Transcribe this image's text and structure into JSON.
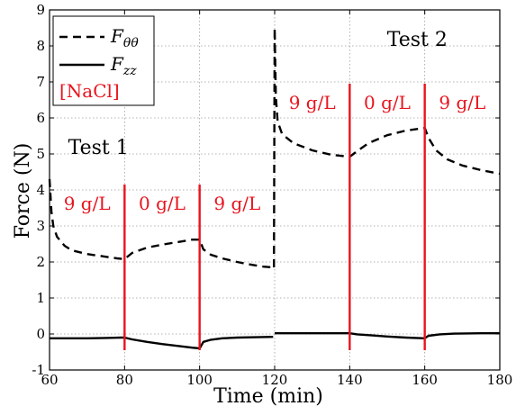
{
  "chart_data": {
    "type": "line",
    "xlabel": "Time (min)",
    "ylabel": "Force (N)",
    "xlim": [
      60,
      180
    ],
    "ylim": [
      -1,
      9
    ],
    "xticks": [
      60,
      80,
      100,
      120,
      140,
      160,
      180
    ],
    "yticks": [
      -1,
      0,
      1,
      2,
      3,
      4,
      5,
      6,
      7,
      8,
      9
    ],
    "grid": true,
    "legend": {
      "placement": "top-left",
      "entries": [
        {
          "label": "F",
          "sub": "θθ",
          "style": "dashed"
        },
        {
          "label": "F",
          "sub": "zz",
          "style": "solid"
        }
      ],
      "extra": "[NaCl]"
    },
    "series": [
      {
        "key": "ftt",
        "style": "dashed",
        "color": "#000000",
        "segments": [
          [
            [
              60,
              4.3
            ],
            [
              60.5,
              3.4
            ],
            [
              61,
              3.0
            ],
            [
              62,
              2.7
            ],
            [
              64,
              2.45
            ],
            [
              66,
              2.32
            ],
            [
              70,
              2.22
            ],
            [
              74,
              2.16
            ],
            [
              78,
              2.1
            ],
            [
              80,
              2.08
            ],
            [
              82,
              2.25
            ],
            [
              86,
              2.4
            ],
            [
              90,
              2.48
            ],
            [
              94,
              2.55
            ],
            [
              98,
              2.62
            ],
            [
              100,
              2.62
            ],
            [
              101,
              2.35
            ],
            [
              103,
              2.2
            ],
            [
              106,
              2.1
            ],
            [
              110,
              2.0
            ],
            [
              114,
              1.92
            ],
            [
              117,
              1.87
            ],
            [
              119.6,
              1.85
            ]
          ],
          [
            [
              119.8,
              1.85
            ],
            [
              120,
              8.5
            ],
            [
              120.3,
              6.6
            ],
            [
              120.8,
              5.9
            ],
            [
              122,
              5.55
            ],
            [
              125,
              5.3
            ],
            [
              130,
              5.1
            ],
            [
              135,
              4.98
            ],
            [
              140,
              4.92
            ],
            [
              142,
              5.08
            ],
            [
              145,
              5.3
            ],
            [
              150,
              5.52
            ],
            [
              155,
              5.65
            ],
            [
              160,
              5.72
            ],
            [
              161,
              5.45
            ],
            [
              163,
              5.1
            ],
            [
              166,
              4.85
            ],
            [
              170,
              4.68
            ],
            [
              175,
              4.55
            ],
            [
              180,
              4.45
            ]
          ]
        ]
      },
      {
        "key": "fzz",
        "style": "solid",
        "color": "#000000",
        "segments": [
          [
            [
              60,
              -0.12
            ],
            [
              65,
              -0.12
            ],
            [
              70,
              -0.12
            ],
            [
              75,
              -0.11
            ],
            [
              79,
              -0.1
            ],
            [
              80,
              -0.1
            ],
            [
              82,
              -0.15
            ],
            [
              86,
              -0.22
            ],
            [
              90,
              -0.28
            ],
            [
              94,
              -0.33
            ],
            [
              98,
              -0.38
            ],
            [
              100,
              -0.4
            ],
            [
              101,
              -0.22
            ],
            [
              103,
              -0.16
            ],
            [
              106,
              -0.12
            ],
            [
              110,
              -0.1
            ],
            [
              115,
              -0.09
            ],
            [
              119.6,
              -0.08
            ]
          ],
          [
            [
              120,
              0.02
            ],
            [
              125,
              0.02
            ],
            [
              130,
              0.02
            ],
            [
              135,
              0.02
            ],
            [
              139,
              0.02
            ],
            [
              140,
              0.02
            ],
            [
              142,
              -0.01
            ],
            [
              146,
              -0.04
            ],
            [
              150,
              -0.07
            ],
            [
              155,
              -0.1
            ],
            [
              160,
              -0.12
            ],
            [
              161,
              -0.05
            ],
            [
              164,
              -0.01
            ],
            [
              168,
              0.01
            ],
            [
              175,
              0.02
            ],
            [
              180,
              0.02
            ]
          ]
        ]
      }
    ],
    "vlines": [
      {
        "x": 80,
        "y0": -0.45,
        "y1": 4.15,
        "color": "#e8141e"
      },
      {
        "x": 100,
        "y0": -0.45,
        "y1": 4.15,
        "color": "#e8141e"
      },
      {
        "x": 140,
        "y0": -0.45,
        "y1": 6.95,
        "color": "#e8141e"
      },
      {
        "x": 160,
        "y0": -0.45,
        "y1": 6.95,
        "color": "#e8141e"
      }
    ],
    "annotations": [
      {
        "text": "Test 1",
        "x": 73,
        "y": 5.0,
        "color": "#000000",
        "kind": "annot"
      },
      {
        "text": "Test 2",
        "x": 158,
        "y": 8.0,
        "color": "#000000",
        "kind": "annot"
      },
      {
        "text": "9 g/L",
        "x": 70,
        "y": 3.45,
        "color": "#e8141e",
        "kind": "conc"
      },
      {
        "text": "0 g/L",
        "x": 90,
        "y": 3.45,
        "color": "#e8141e",
        "kind": "conc"
      },
      {
        "text": "9 g/L",
        "x": 110,
        "y": 3.45,
        "color": "#e8141e",
        "kind": "conc"
      },
      {
        "text": "9 g/L",
        "x": 130,
        "y": 6.25,
        "color": "#e8141e",
        "kind": "conc"
      },
      {
        "text": "0 g/L",
        "x": 150,
        "y": 6.25,
        "color": "#e8141e",
        "kind": "conc"
      },
      {
        "text": "9 g/L",
        "x": 170,
        "y": 6.25,
        "color": "#e8141e",
        "kind": "conc"
      }
    ]
  }
}
